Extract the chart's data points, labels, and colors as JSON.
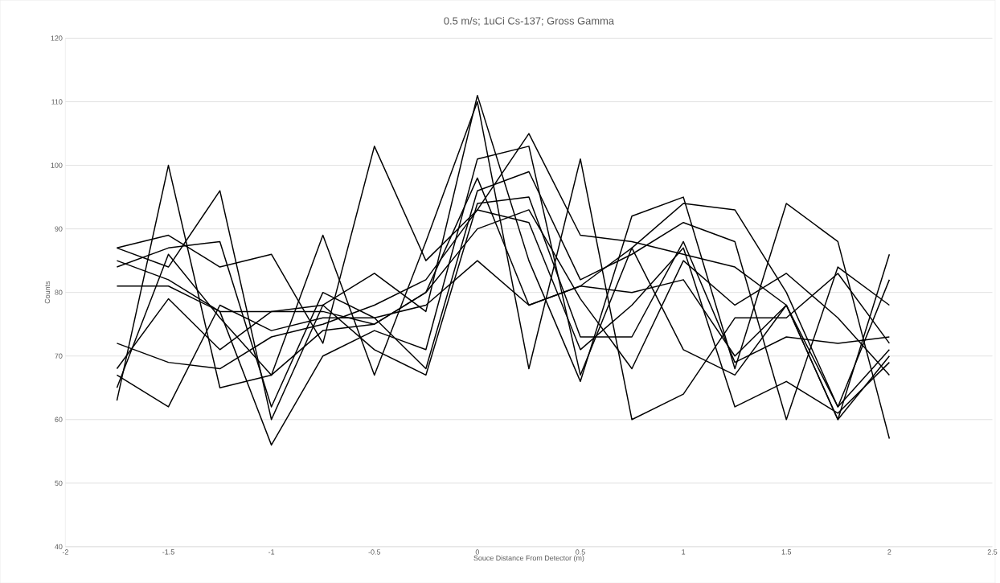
{
  "chart_data": {
    "type": "line",
    "title": "0.5 m/s; 1uCi Cs-137; Gross Gamma",
    "xlabel": "Souce Distance From Detector (m)",
    "ylabel": "Counts",
    "x": [
      -1.75,
      -1.5,
      -1.25,
      -1,
      -0.75,
      -0.5,
      -0.25,
      0,
      0.25,
      0.5,
      0.75,
      1,
      1.25,
      1.5,
      1.75,
      2
    ],
    "series": [
      {
        "color": "#000000",
        "values": [
          63,
          100,
          65,
          67,
          89,
          67,
          88,
          110,
          68,
          101,
          60,
          64,
          76,
          76,
          83,
          72
        ]
      },
      {
        "color": "#000000",
        "values": [
          87,
          89,
          84,
          86,
          72,
          103,
          85,
          93,
          105,
          89,
          88,
          86,
          84,
          78,
          60,
          86
        ]
      },
      {
        "color": "#000000",
        "values": [
          87,
          84,
          96,
          60,
          78,
          83,
          77,
          111,
          85,
          66,
          92,
          95,
          68,
          94,
          88,
          57
        ]
      },
      {
        "color": "#000000",
        "values": [
          85,
          82,
          77,
          56,
          70,
          74,
          71,
          101,
          103,
          67,
          87,
          94,
          93,
          80,
          62,
          82
        ]
      },
      {
        "color": "#000000",
        "values": [
          84,
          87,
          88,
          62,
          80,
          76,
          68,
          96,
          99,
          82,
          86,
          91,
          88,
          60,
          84,
          78
        ]
      },
      {
        "color": "#000000",
        "values": [
          81,
          81,
          77,
          77,
          78,
          71,
          67,
          94,
          95,
          73,
          73,
          88,
          69,
          73,
          72,
          73
        ]
      },
      {
        "color": "#000000",
        "values": [
          72,
          69,
          68,
          73,
          75,
          78,
          82,
          93,
          91,
          71,
          78,
          87,
          62,
          66,
          61,
          69
        ]
      },
      {
        "color": "#000000",
        "values": [
          68,
          79,
          71,
          77,
          77,
          75,
          80,
          90,
          93,
          79,
          68,
          85,
          78,
          83,
          76,
          67
        ]
      },
      {
        "color": "#000000",
        "values": [
          67,
          62,
          78,
          74,
          76,
          76,
          78,
          85,
          78,
          81,
          80,
          82,
          70,
          78,
          62,
          71
        ]
      },
      {
        "color": "#000000",
        "values": [
          65,
          86,
          76,
          67,
          74,
          75,
          80,
          98,
          78,
          81,
          87,
          71,
          67,
          78,
          60,
          70
        ]
      }
    ],
    "xlim": [
      -2,
      2.5
    ],
    "ylim": [
      40,
      120
    ],
    "xticks": [
      -2,
      -1.5,
      -1,
      -0.5,
      0,
      0.5,
      1,
      1.5,
      2,
      2.5
    ],
    "yticks": [
      40,
      50,
      60,
      70,
      80,
      90,
      100,
      110,
      120
    ],
    "grid": "y"
  }
}
